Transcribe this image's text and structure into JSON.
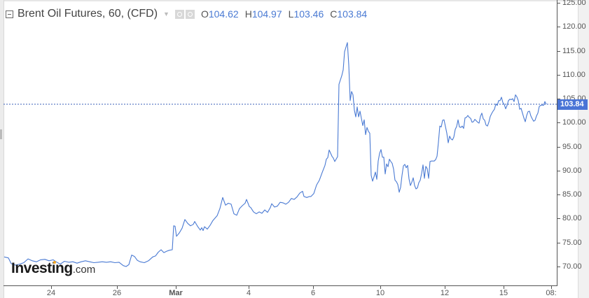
{
  "header": {
    "title": "Brent Oil Futures, 60, (CFD)",
    "ohlc": [
      {
        "key": "O",
        "value": "104.62"
      },
      {
        "key": "H",
        "value": "104.97"
      },
      {
        "key": "L",
        "value": "103.46"
      },
      {
        "key": "C",
        "value": "103.84"
      }
    ],
    "icons": [
      "collapse-icon",
      "dropdown-caret-icon",
      "eye-icon",
      "gear-icon"
    ]
  },
  "logo": {
    "brand": "Investing",
    "domain": ".com"
  },
  "price_tag": "103.84",
  "colors": {
    "line": "#4a7ad3",
    "price_tag": "#4a74d6",
    "axis": "#555555"
  },
  "y_axis": {
    "labels": [
      "125.00",
      "120.00",
      "115.00",
      "110.00",
      "105.00",
      "100.00",
      "95.00",
      "90.00",
      "85.00",
      "80.00",
      "75.00",
      "70.00"
    ]
  },
  "x_axis": {
    "labels": [
      {
        "text": "24",
        "bold": false
      },
      {
        "text": "26",
        "bold": false
      },
      {
        "text": "Mar",
        "bold": true
      },
      {
        "text": "4",
        "bold": false
      },
      {
        "text": "6",
        "bold": false
      },
      {
        "text": "10",
        "bold": false
      },
      {
        "text": "12",
        "bold": false
      },
      {
        "text": "15",
        "bold": false
      },
      {
        "text": "08:",
        "bold": false
      }
    ]
  },
  "chart_data": {
    "type": "line",
    "title": "Brent Oil Futures, 60, (CFD)",
    "xlabel": "",
    "ylabel": "",
    "ylim": [
      66,
      125.5
    ],
    "grid": false,
    "legend": "none",
    "current_price_line": 103.84,
    "x_ticks": [
      "24",
      "26",
      "Mar",
      "4",
      "6",
      "10",
      "12",
      "15",
      "08:"
    ],
    "y_ticks": [
      70,
      75,
      80,
      85,
      90,
      95,
      100,
      105,
      110,
      115,
      120,
      125
    ],
    "series": [
      {
        "name": "Brent Oil Futures (hourly)",
        "points": [
          [
            6,
            72.0
          ],
          [
            12,
            71.8
          ],
          [
            16,
            70.6
          ],
          [
            22,
            70.3
          ],
          [
            28,
            70.5
          ],
          [
            34,
            70.8
          ],
          [
            40,
            71.6
          ],
          [
            46,
            71.2
          ],
          [
            52,
            71.0
          ],
          [
            58,
            71.4
          ],
          [
            64,
            71.5
          ],
          [
            70,
            71.2
          ],
          [
            76,
            71.4
          ],
          [
            80,
            71.0
          ],
          [
            86,
            70.5
          ],
          [
            92,
            71.1
          ],
          [
            98,
            70.9
          ],
          [
            104,
            71.0
          ],
          [
            110,
            70.7
          ],
          [
            116,
            71.0
          ],
          [
            122,
            71.2
          ],
          [
            128,
            71.0
          ],
          [
            134,
            70.8
          ],
          [
            140,
            70.9
          ],
          [
            146,
            71.0
          ],
          [
            152,
            70.9
          ],
          [
            158,
            71.0
          ],
          [
            164,
            70.8
          ],
          [
            170,
            70.9
          ],
          [
            176,
            70.2
          ],
          [
            180,
            70.0
          ],
          [
            184,
            70.4
          ],
          [
            188,
            72.4
          ],
          [
            192,
            72.1
          ],
          [
            196,
            71.3
          ],
          [
            200,
            71.0
          ],
          [
            206,
            70.8
          ],
          [
            212,
            71.2
          ],
          [
            218,
            72.0
          ],
          [
            222,
            72.2
          ],
          [
            226,
            73.0
          ],
          [
            230,
            73.5
          ],
          [
            234,
            72.9
          ],
          [
            238,
            73.2
          ],
          [
            242,
            73.4
          ],
          [
            246,
            73.5
          ],
          [
            248,
            78.5
          ],
          [
            250,
            78.4
          ],
          [
            252,
            76.3
          ],
          [
            256,
            77.0
          ],
          [
            260,
            78.0
          ],
          [
            264,
            79.8
          ],
          [
            268,
            79.0
          ],
          [
            272,
            78.5
          ],
          [
            276,
            78.8
          ],
          [
            278,
            79.4
          ],
          [
            282,
            78.4
          ],
          [
            286,
            77.6
          ],
          [
            288,
            78.1
          ],
          [
            290,
            77.5
          ],
          [
            292,
            78.3
          ],
          [
            296,
            77.8
          ],
          [
            300,
            78.6
          ],
          [
            304,
            79.6
          ],
          [
            310,
            80.6
          ],
          [
            314,
            82.1
          ],
          [
            318,
            84.4
          ],
          [
            322,
            82.8
          ],
          [
            326,
            83.2
          ],
          [
            330,
            83.0
          ],
          [
            334,
            81.0
          ],
          [
            338,
            80.7
          ],
          [
            342,
            82.1
          ],
          [
            346,
            82.7
          ],
          [
            350,
            83.2
          ],
          [
            352,
            84.0
          ],
          [
            356,
            82.5
          ],
          [
            358,
            82.3
          ],
          [
            362,
            81.4
          ],
          [
            366,
            81.0
          ],
          [
            370,
            81.4
          ],
          [
            374,
            81.1
          ],
          [
            378,
            81.8
          ],
          [
            382,
            81.3
          ],
          [
            386,
            82.3
          ],
          [
            388,
            83.1
          ],
          [
            392,
            82.4
          ],
          [
            396,
            82.6
          ],
          [
            400,
            83.4
          ],
          [
            404,
            83.3
          ],
          [
            408,
            83.0
          ],
          [
            412,
            83.4
          ],
          [
            416,
            84.2
          ],
          [
            420,
            84.0
          ],
          [
            424,
            84.5
          ],
          [
            428,
            85.3
          ],
          [
            432,
            85.7
          ],
          [
            434,
            84.6
          ],
          [
            438,
            84.4
          ],
          [
            442,
            84.6
          ],
          [
            444,
            84.6
          ],
          [
            448,
            85.2
          ],
          [
            452,
            87.0
          ],
          [
            456,
            88.0
          ],
          [
            460,
            89.6
          ],
          [
            464,
            91.1
          ],
          [
            466,
            92.4
          ],
          [
            468,
            92.7
          ],
          [
            470,
            94.3
          ],
          [
            474,
            93.0
          ],
          [
            476,
            92.6
          ],
          [
            478,
            91.9
          ],
          [
            482,
            92.9
          ],
          [
            484,
            108.0
          ],
          [
            488,
            109.8
          ],
          [
            490,
            111.0
          ],
          [
            492,
            114.8
          ],
          [
            496,
            116.7
          ],
          [
            498,
            112.0
          ],
          [
            500,
            104.6
          ],
          [
            502,
            106.5
          ],
          [
            504,
            105.8
          ],
          [
            506,
            102.6
          ],
          [
            508,
            101.2
          ],
          [
            510,
            103.3
          ],
          [
            512,
            101.2
          ],
          [
            514,
            102.4
          ],
          [
            516,
            100.9
          ],
          [
            518,
            99.4
          ],
          [
            520,
            100.6
          ],
          [
            522,
            97.5
          ],
          [
            524,
            99.0
          ],
          [
            526,
            98.2
          ],
          [
            528,
            97.8
          ],
          [
            530,
            89.0
          ],
          [
            532,
            87.8
          ],
          [
            534,
            88.7
          ],
          [
            536,
            89.7
          ],
          [
            538,
            88.2
          ],
          [
            540,
            92.0
          ],
          [
            542,
            93.6
          ],
          [
            544,
            94.4
          ],
          [
            546,
            92.8
          ],
          [
            548,
            92.8
          ],
          [
            550,
            89.3
          ],
          [
            552,
            91.4
          ],
          [
            554,
            90.8
          ],
          [
            556,
            92.4
          ],
          [
            558,
            91.9
          ],
          [
            560,
            91.5
          ],
          [
            562,
            90.3
          ],
          [
            564,
            88.0
          ],
          [
            566,
            87.7
          ],
          [
            568,
            87.1
          ],
          [
            570,
            85.5
          ],
          [
            572,
            86.5
          ],
          [
            574,
            89.0
          ],
          [
            576,
            91.0
          ],
          [
            578,
            91.3
          ],
          [
            580,
            90.6
          ],
          [
            582,
            91.1
          ],
          [
            584,
            88.3
          ],
          [
            586,
            86.9
          ],
          [
            588,
            87.6
          ],
          [
            590,
            88.5
          ],
          [
            592,
            86.9
          ],
          [
            594,
            86.2
          ],
          [
            596,
            86.4
          ],
          [
            598,
            87.5
          ],
          [
            600,
            88.0
          ],
          [
            602,
            89.4
          ],
          [
            604,
            91.2
          ],
          [
            606,
            88.4
          ],
          [
            608,
            90.9
          ],
          [
            610,
            90.4
          ],
          [
            612,
            88.4
          ],
          [
            614,
            91.9
          ],
          [
            616,
            92.0
          ],
          [
            620,
            92.0
          ],
          [
            622,
            92.3
          ],
          [
            624,
            93.0
          ],
          [
            626,
            95.9
          ],
          [
            628,
            99.3
          ],
          [
            630,
            99.1
          ],
          [
            632,
            100.5
          ],
          [
            634,
            100.6
          ],
          [
            636,
            99.2
          ],
          [
            638,
            97.8
          ],
          [
            640,
            95.8
          ],
          [
            642,
            97.2
          ],
          [
            644,
            96.6
          ],
          [
            646,
            96.4
          ],
          [
            648,
            97.0
          ],
          [
            650,
            98.6
          ],
          [
            652,
            99.2
          ],
          [
            654,
            100.6
          ],
          [
            656,
            99.1
          ],
          [
            658,
            99.0
          ],
          [
            660,
            99.3
          ],
          [
            662,
            98.8
          ],
          [
            664,
            101.0
          ],
          [
            666,
            101.1
          ],
          [
            668,
            101.5
          ],
          [
            670,
            101.1
          ],
          [
            672,
            100.9
          ],
          [
            674,
            100.1
          ],
          [
            676,
            100.2
          ],
          [
            678,
            100.7
          ],
          [
            680,
            100.4
          ],
          [
            682,
            100.1
          ],
          [
            684,
            99.9
          ],
          [
            686,
            101.3
          ],
          [
            688,
            102.0
          ],
          [
            690,
            100.8
          ],
          [
            692,
            100.5
          ],
          [
            694,
            99.5
          ],
          [
            696,
            99.3
          ],
          [
            698,
            100.1
          ],
          [
            700,
            101.3
          ],
          [
            702,
            101.9
          ],
          [
            704,
            102.4
          ],
          [
            706,
            102.8
          ],
          [
            708,
            103.9
          ],
          [
            710,
            103.6
          ],
          [
            712,
            104.6
          ],
          [
            714,
            104.6
          ],
          [
            716,
            105.3
          ],
          [
            718,
            104.2
          ],
          [
            720,
            103.8
          ],
          [
            722,
            102.9
          ],
          [
            724,
            103.6
          ],
          [
            726,
            104.6
          ],
          [
            728,
            104.9
          ],
          [
            730,
            104.8
          ],
          [
            732,
            105.0
          ],
          [
            734,
            104.4
          ],
          [
            736,
            105.8
          ],
          [
            738,
            105.4
          ],
          [
            740,
            104.6
          ],
          [
            742,
            102.8
          ],
          [
            744,
            103.0
          ],
          [
            746,
            102.0
          ],
          [
            748,
            101.0
          ],
          [
            750,
            100.2
          ],
          [
            752,
            101.5
          ],
          [
            754,
            102.3
          ],
          [
            756,
            102.4
          ],
          [
            758,
            101.4
          ],
          [
            760,
            100.8
          ],
          [
            762,
            100.3
          ],
          [
            764,
            100.5
          ],
          [
            766,
            101.4
          ],
          [
            768,
            102.0
          ],
          [
            770,
            103.4
          ],
          [
            772,
            103.6
          ],
          [
            774,
            103.7
          ],
          [
            776,
            103.6
          ],
          [
            778,
            104.4
          ],
          [
            780,
            103.84
          ]
        ]
      }
    ]
  }
}
